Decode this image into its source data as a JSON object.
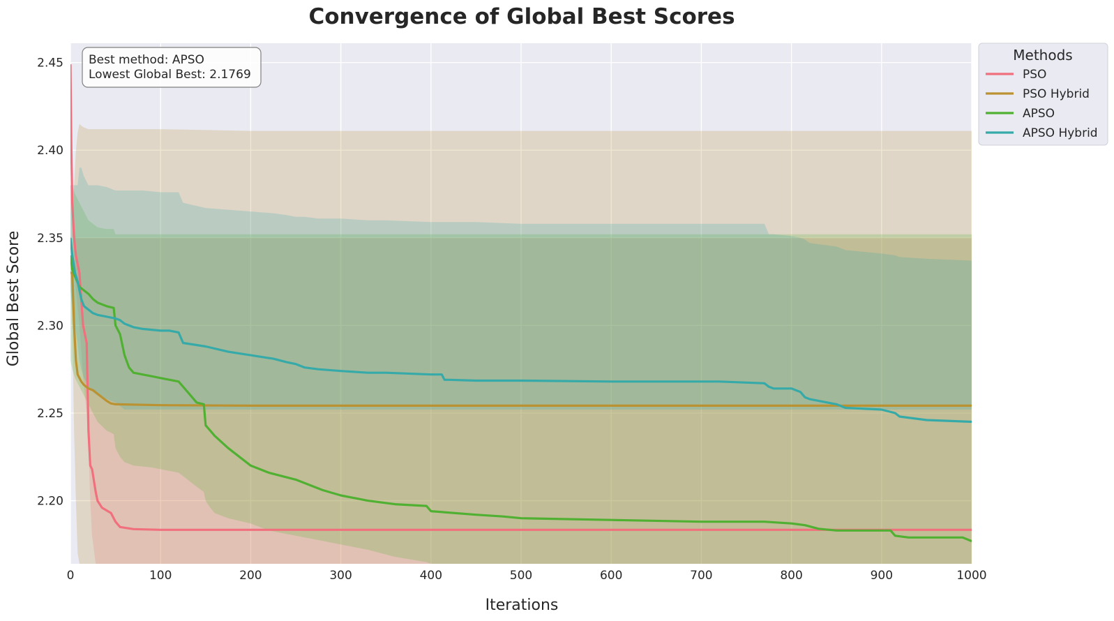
{
  "chart_data": {
    "type": "line",
    "title": "Convergence of Global Best Scores",
    "xlabel": "Iterations",
    "ylabel": "Global Best Score",
    "xlim": [
      0,
      1000
    ],
    "ylim": [
      2.164,
      2.461
    ],
    "xticks": [
      "0",
      "100",
      "200",
      "300",
      "400",
      "500",
      "600",
      "700",
      "800",
      "900",
      "1000"
    ],
    "yticks": [
      "2.20",
      "2.25",
      "2.30",
      "2.35",
      "2.40",
      "2.45"
    ],
    "grid": true,
    "legend": {
      "title": "Methods",
      "placement": "outside-top-right",
      "entries": [
        "PSO",
        "PSO Hybrid",
        "APSO",
        "APSO Hybrid"
      ]
    },
    "annotation": {
      "line1": "Best method: APSO",
      "line2": "Lowest Global Best: 2.1769"
    },
    "colors": {
      "background": "#eaeaf2",
      "grid": "#ffffff",
      "PSO": "#f0707e",
      "PSO Hybrid": "#bb9232",
      "APSO": "#50b032",
      "APSO Hybrid": "#36aaa8"
    },
    "series": [
      {
        "name": "PSO",
        "x": [
          0,
          1,
          2,
          4,
          6,
          10,
          14,
          18,
          20,
          22,
          24,
          28,
          30,
          35,
          45,
          50,
          55,
          70,
          100,
          200,
          500,
          1000
        ],
        "y": [
          2.449,
          2.4,
          2.37,
          2.35,
          2.34,
          2.33,
          2.3,
          2.29,
          2.24,
          2.22,
          2.218,
          2.205,
          2.2,
          2.196,
          2.193,
          2.188,
          2.185,
          2.1838,
          2.1834,
          2.1834,
          2.1834,
          2.1834
        ],
        "band_upper": [
          2.45,
          2.4,
          2.37,
          2.355,
          2.35,
          2.35,
          2.35,
          2.35,
          2.35,
          2.35,
          2.35,
          2.35,
          2.35,
          2.35,
          2.35,
          2.35,
          2.35,
          2.35,
          2.35,
          2.35,
          2.35,
          2.35
        ],
        "band_lower": [
          2.45,
          2.4,
          2.36,
          2.34,
          2.32,
          2.3,
          2.27,
          2.25,
          2.23,
          2.2,
          2.18,
          2.164,
          2.164,
          2.164,
          2.164,
          2.164,
          2.164,
          2.164,
          2.164,
          2.164,
          2.164,
          2.164
        ]
      },
      {
        "name": "PSO Hybrid",
        "x": [
          0,
          2,
          4,
          6,
          8,
          10,
          12,
          15,
          20,
          25,
          30,
          35,
          40,
          45,
          50,
          70,
          100,
          200,
          400,
          600,
          800,
          1000
        ],
        "y": [
          2.33,
          2.33,
          2.3,
          2.28,
          2.272,
          2.27,
          2.268,
          2.266,
          2.264,
          2.263,
          2.261,
          2.259,
          2.257,
          2.2555,
          2.255,
          2.2548,
          2.2545,
          2.2542,
          2.2542,
          2.2542,
          2.2542,
          2.2542
        ],
        "band_upper": [
          2.33,
          2.35,
          2.38,
          2.4,
          2.41,
          2.415,
          2.414,
          2.413,
          2.412,
          2.412,
          2.412,
          2.412,
          2.412,
          2.412,
          2.412,
          2.412,
          2.412,
          2.411,
          2.411,
          2.411,
          2.411,
          2.411
        ],
        "band_lower": [
          2.33,
          2.3,
          2.24,
          2.2,
          2.17,
          2.164,
          2.164,
          2.164,
          2.164,
          2.164,
          2.164,
          2.164,
          2.164,
          2.164,
          2.164,
          2.164,
          2.164,
          2.164,
          2.164,
          2.164,
          2.164,
          2.164
        ]
      },
      {
        "name": "APSO",
        "x": [
          0,
          2,
          5,
          10,
          15,
          20,
          25,
          30,
          40,
          48,
          50,
          55,
          60,
          65,
          70,
          90,
          100,
          120,
          130,
          140,
          148,
          150,
          155,
          160,
          175,
          200,
          220,
          250,
          280,
          300,
          330,
          360,
          395,
          400,
          450,
          480,
          500,
          600,
          700,
          770,
          800,
          815,
          830,
          850,
          910,
          915,
          930,
          990,
          1000
        ],
        "y": [
          2.34,
          2.332,
          2.328,
          2.322,
          2.32,
          2.318,
          2.315,
          2.313,
          2.311,
          2.31,
          2.3,
          2.295,
          2.283,
          2.276,
          2.273,
          2.271,
          2.27,
          2.268,
          2.262,
          2.256,
          2.255,
          2.243,
          2.24,
          2.237,
          2.23,
          2.22,
          2.216,
          2.212,
          2.206,
          2.203,
          2.2,
          2.198,
          2.197,
          2.194,
          2.192,
          2.191,
          2.19,
          2.189,
          2.188,
          2.188,
          2.187,
          2.186,
          2.184,
          2.183,
          2.183,
          2.18,
          2.179,
          2.179,
          2.1769
        ],
        "band_upper": [
          2.38,
          2.38,
          2.375,
          2.37,
          2.365,
          2.36,
          2.358,
          2.356,
          2.355,
          2.355,
          2.352,
          2.352,
          2.352,
          2.352,
          2.352,
          2.352,
          2.352,
          2.352,
          2.352,
          2.352,
          2.352,
          2.352,
          2.352,
          2.352,
          2.352,
          2.352,
          2.352,
          2.352,
          2.352,
          2.352,
          2.352,
          2.352,
          2.352,
          2.352,
          2.352,
          2.352,
          2.352,
          2.352,
          2.352,
          2.352,
          2.352,
          2.352,
          2.352,
          2.352,
          2.352,
          2.352,
          2.352,
          2.352,
          2.352
        ],
        "band_lower": [
          2.28,
          2.275,
          2.27,
          2.265,
          2.26,
          2.255,
          2.25,
          2.245,
          2.24,
          2.238,
          2.23,
          2.225,
          2.222,
          2.221,
          2.22,
          2.219,
          2.218,
          2.216,
          2.212,
          2.208,
          2.205,
          2.2,
          2.196,
          2.193,
          2.19,
          2.187,
          2.183,
          2.18,
          2.177,
          2.175,
          2.172,
          2.168,
          2.165,
          2.164,
          2.164,
          2.164,
          2.164,
          2.164,
          2.164,
          2.164,
          2.164,
          2.164,
          2.164,
          2.164,
          2.164,
          2.164,
          2.164,
          2.164,
          2.164
        ]
      },
      {
        "name": "APSO Hybrid",
        "x": [
          0,
          2,
          5,
          8,
          10,
          12,
          15,
          20,
          25,
          30,
          40,
          50,
          55,
          60,
          65,
          70,
          80,
          100,
          110,
          120,
          125,
          150,
          175,
          200,
          225,
          240,
          250,
          260,
          275,
          300,
          330,
          350,
          400,
          412,
          415,
          420,
          450,
          500,
          600,
          700,
          720,
          770,
          775,
          780,
          800,
          810,
          815,
          820,
          850,
          860,
          900,
          915,
          920,
          950,
          1000
        ],
        "y": [
          2.35,
          2.34,
          2.33,
          2.325,
          2.32,
          2.315,
          2.311,
          2.309,
          2.307,
          2.306,
          2.305,
          2.304,
          2.303,
          2.301,
          2.3,
          2.299,
          2.298,
          2.297,
          2.297,
          2.296,
          2.29,
          2.288,
          2.285,
          2.283,
          2.281,
          2.279,
          2.278,
          2.276,
          2.275,
          2.274,
          2.273,
          2.273,
          2.272,
          2.272,
          2.269,
          2.269,
          2.2685,
          2.2685,
          2.268,
          2.268,
          2.268,
          2.267,
          2.265,
          2.264,
          2.264,
          2.262,
          2.259,
          2.258,
          2.255,
          2.253,
          2.252,
          2.25,
          2.248,
          2.246,
          2.245
        ],
        "band_upper": [
          2.38,
          2.38,
          2.38,
          2.38,
          2.39,
          2.39,
          2.385,
          2.38,
          2.38,
          2.38,
          2.379,
          2.377,
          2.377,
          2.377,
          2.377,
          2.377,
          2.377,
          2.376,
          2.376,
          2.376,
          2.37,
          2.367,
          2.366,
          2.365,
          2.364,
          2.363,
          2.362,
          2.362,
          2.361,
          2.361,
          2.36,
          2.36,
          2.359,
          2.359,
          2.359,
          2.359,
          2.359,
          2.358,
          2.358,
          2.358,
          2.358,
          2.358,
          2.352,
          2.352,
          2.351,
          2.35,
          2.349,
          2.347,
          2.345,
          2.343,
          2.341,
          2.34,
          2.339,
          2.338,
          2.337
        ],
        "band_lower": [
          2.32,
          2.31,
          2.3,
          2.29,
          2.28,
          2.275,
          2.27,
          2.265,
          2.262,
          2.26,
          2.258,
          2.256,
          2.254,
          2.252,
          2.252,
          2.252,
          2.252,
          2.252,
          2.252,
          2.252,
          2.252,
          2.252,
          2.252,
          2.252,
          2.252,
          2.252,
          2.252,
          2.252,
          2.252,
          2.252,
          2.252,
          2.252,
          2.252,
          2.252,
          2.252,
          2.252,
          2.252,
          2.252,
          2.252,
          2.252,
          2.252,
          2.252,
          2.252,
          2.252,
          2.252,
          2.252,
          2.252,
          2.252,
          2.252,
          2.252,
          2.252,
          2.252,
          2.252,
          2.252,
          2.252
        ]
      }
    ]
  }
}
